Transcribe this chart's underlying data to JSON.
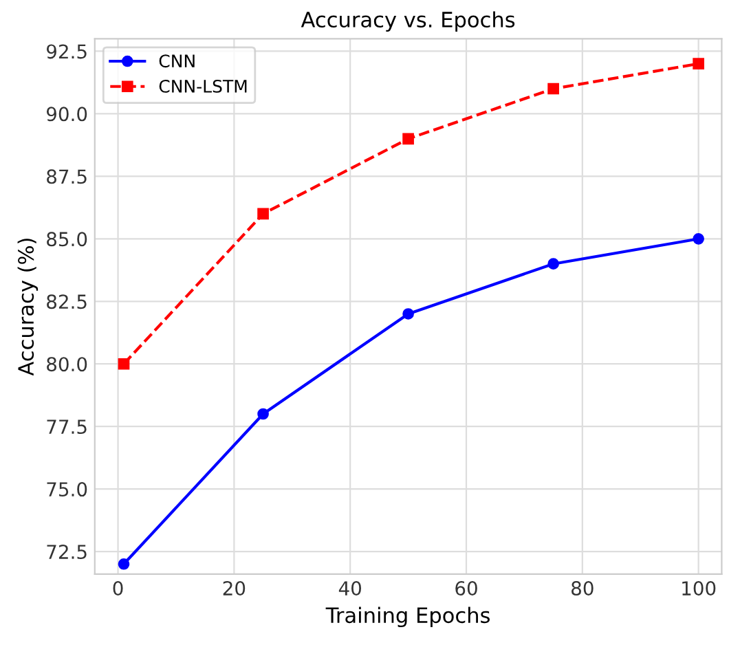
{
  "chart_data": {
    "type": "line",
    "title": "Accuracy vs. Epochs",
    "xlabel": "Training Epochs",
    "ylabel": "Accuracy (%)",
    "x": [
      1,
      25,
      50,
      75,
      100
    ],
    "series": [
      {
        "name": "CNN",
        "color": "#0000ff",
        "values": [
          72,
          78,
          82,
          84,
          85
        ],
        "marker": "circle",
        "line_style": "solid"
      },
      {
        "name": "CNN-LSTM",
        "color": "#ff0000",
        "values": [
          80,
          86,
          89,
          91,
          92
        ],
        "marker": "square",
        "line_style": "dashed"
      }
    ],
    "xlim": [
      -4,
      104
    ],
    "xticks": [
      0,
      20,
      40,
      60,
      80,
      100
    ],
    "ylim": [
      71.6,
      93
    ],
    "yticks": [
      {
        "value": 72.5,
        "label": "72.5"
      },
      {
        "value": 75,
        "label": "75.0"
      },
      {
        "value": 77.5,
        "label": "77.5"
      },
      {
        "value": 80,
        "label": "80.0"
      },
      {
        "value": 82.5,
        "label": "82.5"
      },
      {
        "value": 85,
        "label": "85.0"
      },
      {
        "value": 87.5,
        "label": "87.5"
      },
      {
        "value": 90,
        "label": "90.0"
      },
      {
        "value": 92.5,
        "label": "92.5"
      }
    ],
    "grid": true,
    "legend": "top left"
  }
}
